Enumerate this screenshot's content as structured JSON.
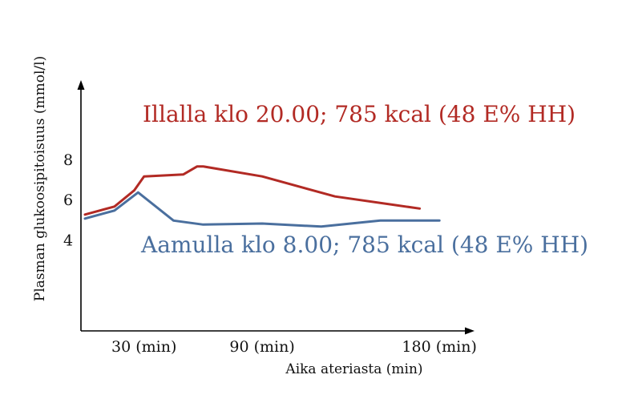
{
  "chart_data": {
    "type": "line",
    "title": "",
    "xlabel": "Aika ateriasta (min)",
    "ylabel": "Plasman glukoosipitoisuus (mmol/l)",
    "x_ticks": [
      {
        "value": 30,
        "label": "30 (min)"
      },
      {
        "value": 90,
        "label": "90 (min)"
      },
      {
        "value": 180,
        "label": "180 (min)"
      }
    ],
    "y_ticks": [
      {
        "value": 4,
        "label": "4"
      },
      {
        "value": 6,
        "label": "6"
      },
      {
        "value": 8,
        "label": "8"
      }
    ],
    "xlim": [
      0,
      195
    ],
    "ylim": [
      -0.5,
      12
    ],
    "grid": false,
    "legend": "direct labels on plot",
    "series": [
      {
        "name": "Illalla klo 20.00; 785 kcal (48 E% HH)",
        "color": "#b22a24",
        "x": [
          0,
          15,
          25,
          30,
          50,
          57,
          60,
          90,
          127,
          170
        ],
        "y": [
          5.3,
          5.7,
          6.5,
          7.2,
          7.3,
          7.7,
          7.7,
          7.2,
          6.2,
          5.6
        ]
      },
      {
        "name": "Aamulla klo 8.00; 785 kcal (48 E% HH)",
        "color": "#4a6f9e",
        "x": [
          0,
          15,
          27,
          45,
          60,
          90,
          120,
          150,
          180
        ],
        "y": [
          5.1,
          5.5,
          6.4,
          5.0,
          4.8,
          4.85,
          4.7,
          5.0,
          5.0
        ]
      }
    ]
  }
}
